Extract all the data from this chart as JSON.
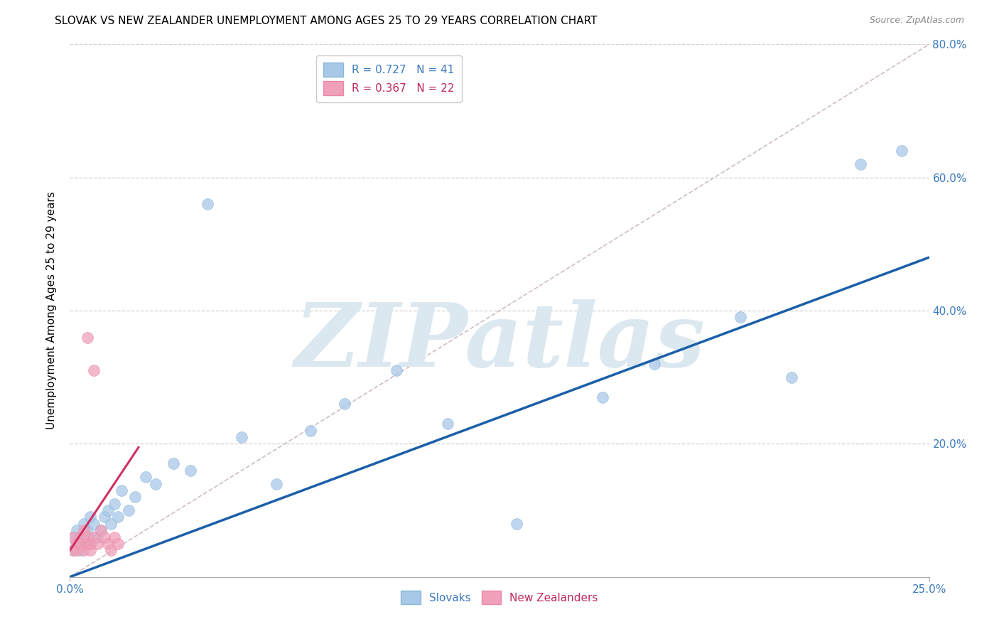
{
  "title": "SLOVAK VS NEW ZEALANDER UNEMPLOYMENT AMONG AGES 25 TO 29 YEARS CORRELATION CHART",
  "source": "Source: ZipAtlas.com",
  "ylabel": "Unemployment Among Ages 25 to 29 years",
  "xlim": [
    0.0,
    0.25
  ],
  "ylim": [
    0.0,
    0.8
  ],
  "xtick_positions": [
    0.0,
    0.25
  ],
  "xtick_labels": [
    "0.0%",
    "25.0%"
  ],
  "ytick_positions": [
    0.2,
    0.4,
    0.6,
    0.8
  ],
  "ytick_labels": [
    "20.0%",
    "40.0%",
    "60.0%",
    "80.0%"
  ],
  "legend_labels": [
    "R = 0.727   N = 41",
    "R = 0.367   N = 22"
  ],
  "scatter_labels": [
    "Slovaks",
    "New Zealanders"
  ],
  "blue_color": "#a8c8e8",
  "pink_color": "#f0a0b8",
  "blue_line_color": "#1a5fa8",
  "pink_line_color": "#d03060",
  "diag_color": "#c8b0c0",
  "grid_color": "#d0d0d0",
  "watermark_color": "#dce8f0",
  "title_fontsize": 11,
  "axis_label_fontsize": 11,
  "tick_fontsize": 11,
  "legend_fontsize": 11,
  "source_fontsize": 9,
  "blue_scatter_x": [
    0.001,
    0.001,
    0.002,
    0.002,
    0.003,
    0.003,
    0.004,
    0.004,
    0.005,
    0.005,
    0.006,
    0.006,
    0.007,
    0.008,
    0.009,
    0.01,
    0.011,
    0.012,
    0.013,
    0.014,
    0.015,
    0.017,
    0.019,
    0.022,
    0.025,
    0.03,
    0.035,
    0.04,
    0.05,
    0.06,
    0.07,
    0.08,
    0.095,
    0.11,
    0.13,
    0.155,
    0.17,
    0.195,
    0.21,
    0.23,
    0.242
  ],
  "blue_scatter_y": [
    0.04,
    0.06,
    0.05,
    0.07,
    0.04,
    0.06,
    0.05,
    0.08,
    0.06,
    0.07,
    0.05,
    0.09,
    0.08,
    0.06,
    0.07,
    0.09,
    0.1,
    0.08,
    0.11,
    0.09,
    0.13,
    0.1,
    0.12,
    0.15,
    0.14,
    0.17,
    0.16,
    0.56,
    0.21,
    0.14,
    0.22,
    0.26,
    0.31,
    0.23,
    0.08,
    0.27,
    0.32,
    0.39,
    0.3,
    0.62,
    0.64
  ],
  "pink_scatter_x": [
    0.001,
    0.001,
    0.002,
    0.002,
    0.003,
    0.003,
    0.004,
    0.004,
    0.005,
    0.005,
    0.006,
    0.006,
    0.007,
    0.008,
    0.009,
    0.01,
    0.011,
    0.012,
    0.013,
    0.014,
    0.005,
    0.007
  ],
  "pink_scatter_y": [
    0.04,
    0.06,
    0.05,
    0.04,
    0.06,
    0.05,
    0.04,
    0.07,
    0.05,
    0.06,
    0.05,
    0.04,
    0.06,
    0.05,
    0.07,
    0.06,
    0.05,
    0.04,
    0.06,
    0.05,
    0.36,
    0.31
  ],
  "blue_line_x": [
    0.0,
    0.25
  ],
  "blue_line_y": [
    0.0,
    0.48
  ],
  "pink_line_x": [
    0.0,
    0.02
  ],
  "pink_line_y": [
    0.04,
    0.195
  ]
}
